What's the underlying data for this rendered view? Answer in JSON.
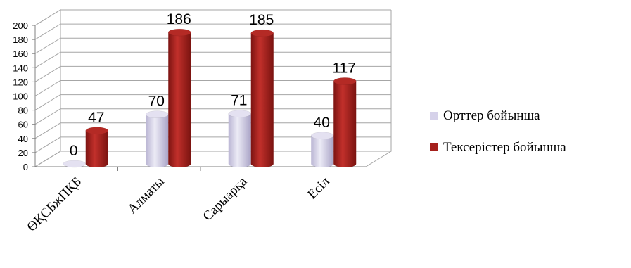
{
  "chart_data": {
    "type": "bar",
    "categories": [
      "ӨҚСБжПҚБ",
      "Алматы",
      "Сарыарқа",
      "Есіл"
    ],
    "series": [
      {
        "name": "Өрттер бойынша",
        "values": [
          0,
          70,
          71,
          40
        ],
        "color": "#d6d2ea"
      },
      {
        "name": "Тексерістер бойынша",
        "values": [
          47,
          186,
          185,
          117
        ],
        "color": "#a5201c"
      }
    ],
    "ylim": [
      0,
      200
    ],
    "yticks": [
      0,
      20,
      40,
      60,
      80,
      100,
      120,
      140,
      160,
      180,
      200
    ],
    "grid": true,
    "legend": "right",
    "style": "3d-cylinder"
  }
}
